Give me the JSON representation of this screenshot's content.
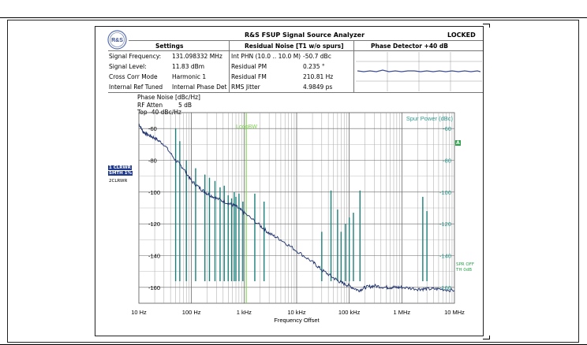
{
  "header": {
    "title": "R&S FSUP Signal Source Analyzer",
    "status": "LOCKED",
    "logo_text": "R&S"
  },
  "settings": {
    "heading": "Settings",
    "rows": [
      {
        "label": "Signal Frequency:",
        "value": "131.098332 MHz"
      },
      {
        "label": "Signal Level:",
        "value": "11.83 dBm"
      },
      {
        "label": "Cross Corr Mode",
        "value": "Harmonic 1"
      },
      {
        "label": "Internal Ref Tuned",
        "value": "Internal Phase Det"
      }
    ]
  },
  "residual": {
    "heading": "Residual Noise [T1 w/o spurs]",
    "rows": [
      {
        "label": "Int PHN (10.0 .. 10.0 M)",
        "value": "-50.7 dBc"
      },
      {
        "label": "Residual PM",
        "value": "0.235 °"
      },
      {
        "label": "Residual FM",
        "value": "210.81 Hz"
      },
      {
        "label": "RMS Jitter",
        "value": "4.9849 ps"
      }
    ]
  },
  "phase_detector": {
    "heading": "Phase Detector +40 dB"
  },
  "plot_info": {
    "line1": "Phase Noise [dBc/Hz]",
    "line2_label": "RF Atten",
    "line2_value": "5 dB",
    "line3": "Top -40 dBc/Hz"
  },
  "trace_labels": {
    "t1a": "1 CLRWR",
    "t1b": "SMTH 1%",
    "t2": "2CLRWR"
  },
  "markers": {
    "a_marker": "A",
    "spr_line1": "SPR OFF",
    "spr_line2": "TH 0dB"
  },
  "colors": {
    "trace": "#1c2f6b",
    "spur": "#1b7f7a",
    "loopbw": "#7cd04b",
    "grid": "#777777",
    "right_axis": "#2a9a8f"
  },
  "chart_data": {
    "type": "line",
    "xlabel": "Frequency Offset",
    "ylabel": "Phase Noise [dBc/Hz]",
    "right_axis_label": "Spur Power (dBc)",
    "loopbw_label": "LoopBW",
    "loopbw_x": 1100,
    "x_scale": "log",
    "xlim": [
      10,
      10000000
    ],
    "ylim": [
      -170,
      -50
    ],
    "x_ticks": [
      {
        "v": 10,
        "label": "10 Hz"
      },
      {
        "v": 100,
        "label": "100 Hz"
      },
      {
        "v": 1000,
        "label": "1 kHz"
      },
      {
        "v": 10000,
        "label": "10 kHz"
      },
      {
        "v": 100000,
        "label": "100 kHz"
      },
      {
        "v": 1000000,
        "label": "1 MHz"
      },
      {
        "v": 10000000,
        "label": "10 MHz"
      }
    ],
    "y_ticks": [
      {
        "v": -60,
        "label": "-60"
      },
      {
        "v": -80,
        "label": "-80"
      },
      {
        "v": -100,
        "label": "-100"
      },
      {
        "v": -120,
        "label": "-120"
      },
      {
        "v": -140,
        "label": "-140"
      },
      {
        "v": -160,
        "label": "-160"
      }
    ],
    "grid": true,
    "series": [
      {
        "name": "Trace 1",
        "x": [
          10,
          12,
          15,
          20,
          30,
          50,
          70,
          100,
          150,
          200,
          300,
          500,
          700,
          1000,
          2000,
          3000,
          5000,
          10000,
          20000,
          30000,
          50000,
          70000,
          100000,
          150000,
          200000,
          300000,
          500000,
          700000,
          1000000,
          2000000,
          3000000,
          5000000,
          10000000
        ],
        "y": [
          -57,
          -62,
          -64,
          -66,
          -70,
          -80,
          -85,
          -93,
          -98,
          -101,
          -104,
          -107,
          -109,
          -113,
          -121,
          -126,
          -130,
          -137,
          -144,
          -149,
          -154,
          -157,
          -159,
          -162,
          -160,
          -159,
          -160,
          -160,
          -160,
          -161,
          -161,
          -161,
          -162
        ]
      }
    ],
    "spurs": {
      "name": "Spurs",
      "x": [
        50,
        60,
        80,
        120,
        180,
        220,
        280,
        350,
        420,
        500,
        580,
        650,
        700,
        800,
        950,
        1600,
        2400,
        30000,
        45000,
        60000,
        70000,
        85000,
        100000,
        120000,
        160000,
        2500000,
        3000000
      ],
      "y": [
        -60,
        -68,
        -80,
        -85,
        -89,
        -91,
        -93,
        -97,
        -96,
        -102,
        -104,
        -100,
        -103,
        -101,
        -106,
        -101,
        -106,
        -125,
        -99,
        -111,
        -125,
        -120,
        -116,
        -113,
        -99,
        -103,
        -112
      ]
    }
  }
}
